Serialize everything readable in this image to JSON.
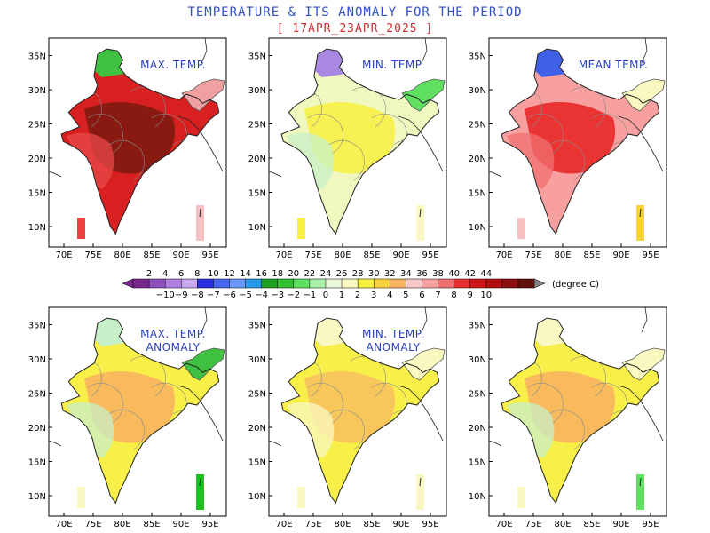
{
  "title": "TEMPERATURE & ITS ANOMALY FOR THE PERIOD",
  "period": "[ 17APR_23APR_2025 ]",
  "lat_ticks": [
    "10N",
    "15N",
    "20N",
    "25N",
    "30N",
    "35N"
  ],
  "lon_ticks": [
    "70E",
    "75E",
    "80E",
    "85E",
    "90E",
    "95E"
  ],
  "panels": [
    {
      "title_lines": [
        "MAX. TEMP."
      ],
      "fill": "#d82020",
      "core": "#7a1a10",
      "core2": "#e84848",
      "north": "#40c040",
      "ne": "#f0a0a0",
      "island": "#f04040",
      "bar": "#f8c0c0"
    },
    {
      "title_lines": [
        "MIN. TEMP."
      ],
      "fill": "#f0f8c0",
      "core": "#f8f040",
      "core2": "#c8f0c8",
      "north": "#a888e0",
      "ne": "#60e060",
      "island": "#f8f040",
      "bar": "#f8f8c0"
    },
    {
      "title_lines": [
        "MEAN TEMP."
      ],
      "fill": "#f8a0a0",
      "core": "#e82020",
      "core2": "#f07070",
      "north": "#4060e8",
      "ne": "#f8f8c0",
      "island": "#f8c0c0",
      "bar": "#f8d040"
    },
    {
      "title_lines": [
        "MAX. TEMP.",
        "ANOMALY"
      ],
      "fill": "#f8f048",
      "core": "#f8b060",
      "core2": "#c8f0c8",
      "north": "#c8f0c8",
      "ne": "#40c040",
      "island": "#f8f8c0",
      "bar": "#20c020"
    },
    {
      "title_lines": [
        "MIN. TEMP.",
        "ANOMALY"
      ],
      "fill": "#f8f048",
      "core": "#f8c060",
      "core2": "#f8f8c0",
      "north": "#f8f8c0",
      "ne": "#f8f8c0",
      "island": "#f8f8c0",
      "bar": "#f8f8c0"
    },
    {
      "title_lines": [],
      "fill": "#f8f048",
      "core": "#f8b060",
      "core2": "#c8f0c8",
      "north": "#f8f8c0",
      "ne": "#f8f8c0",
      "island": "#f8f8c0",
      "bar": "#60e060"
    }
  ],
  "colorbar": {
    "top_labels": [
      "2",
      "4",
      "6",
      "8",
      "10",
      "12",
      "14",
      "16",
      "18",
      "20",
      "22",
      "24",
      "26",
      "28",
      "30",
      "32",
      "34",
      "36",
      "38",
      "40",
      "42",
      "44"
    ],
    "bottom_labels": [
      "−10",
      "−9",
      "−8",
      "−7",
      "−6",
      "−5",
      "−4",
      "−3",
      "−2",
      "−1",
      "0",
      "1",
      "2",
      "3",
      "4",
      "5",
      "6",
      "7",
      "8",
      "9",
      "10"
    ],
    "unit": "(degree C)",
    "colors": [
      "#7a2890",
      "#9050c0",
      "#b080e0",
      "#c8a8f0",
      "#2830e0",
      "#4868f0",
      "#6898f8",
      "#2898e8",
      "#20a020",
      "#30c030",
      "#60e060",
      "#a8f0a8",
      "#e8f8d8",
      "#f8f8c0",
      "#f8f040",
      "#f8d040",
      "#f8b060",
      "#f8c8c8",
      "#f8a0a0",
      "#f07070",
      "#e83030",
      "#d01818",
      "#b01010",
      "#8a1010",
      "#601008"
    ]
  }
}
